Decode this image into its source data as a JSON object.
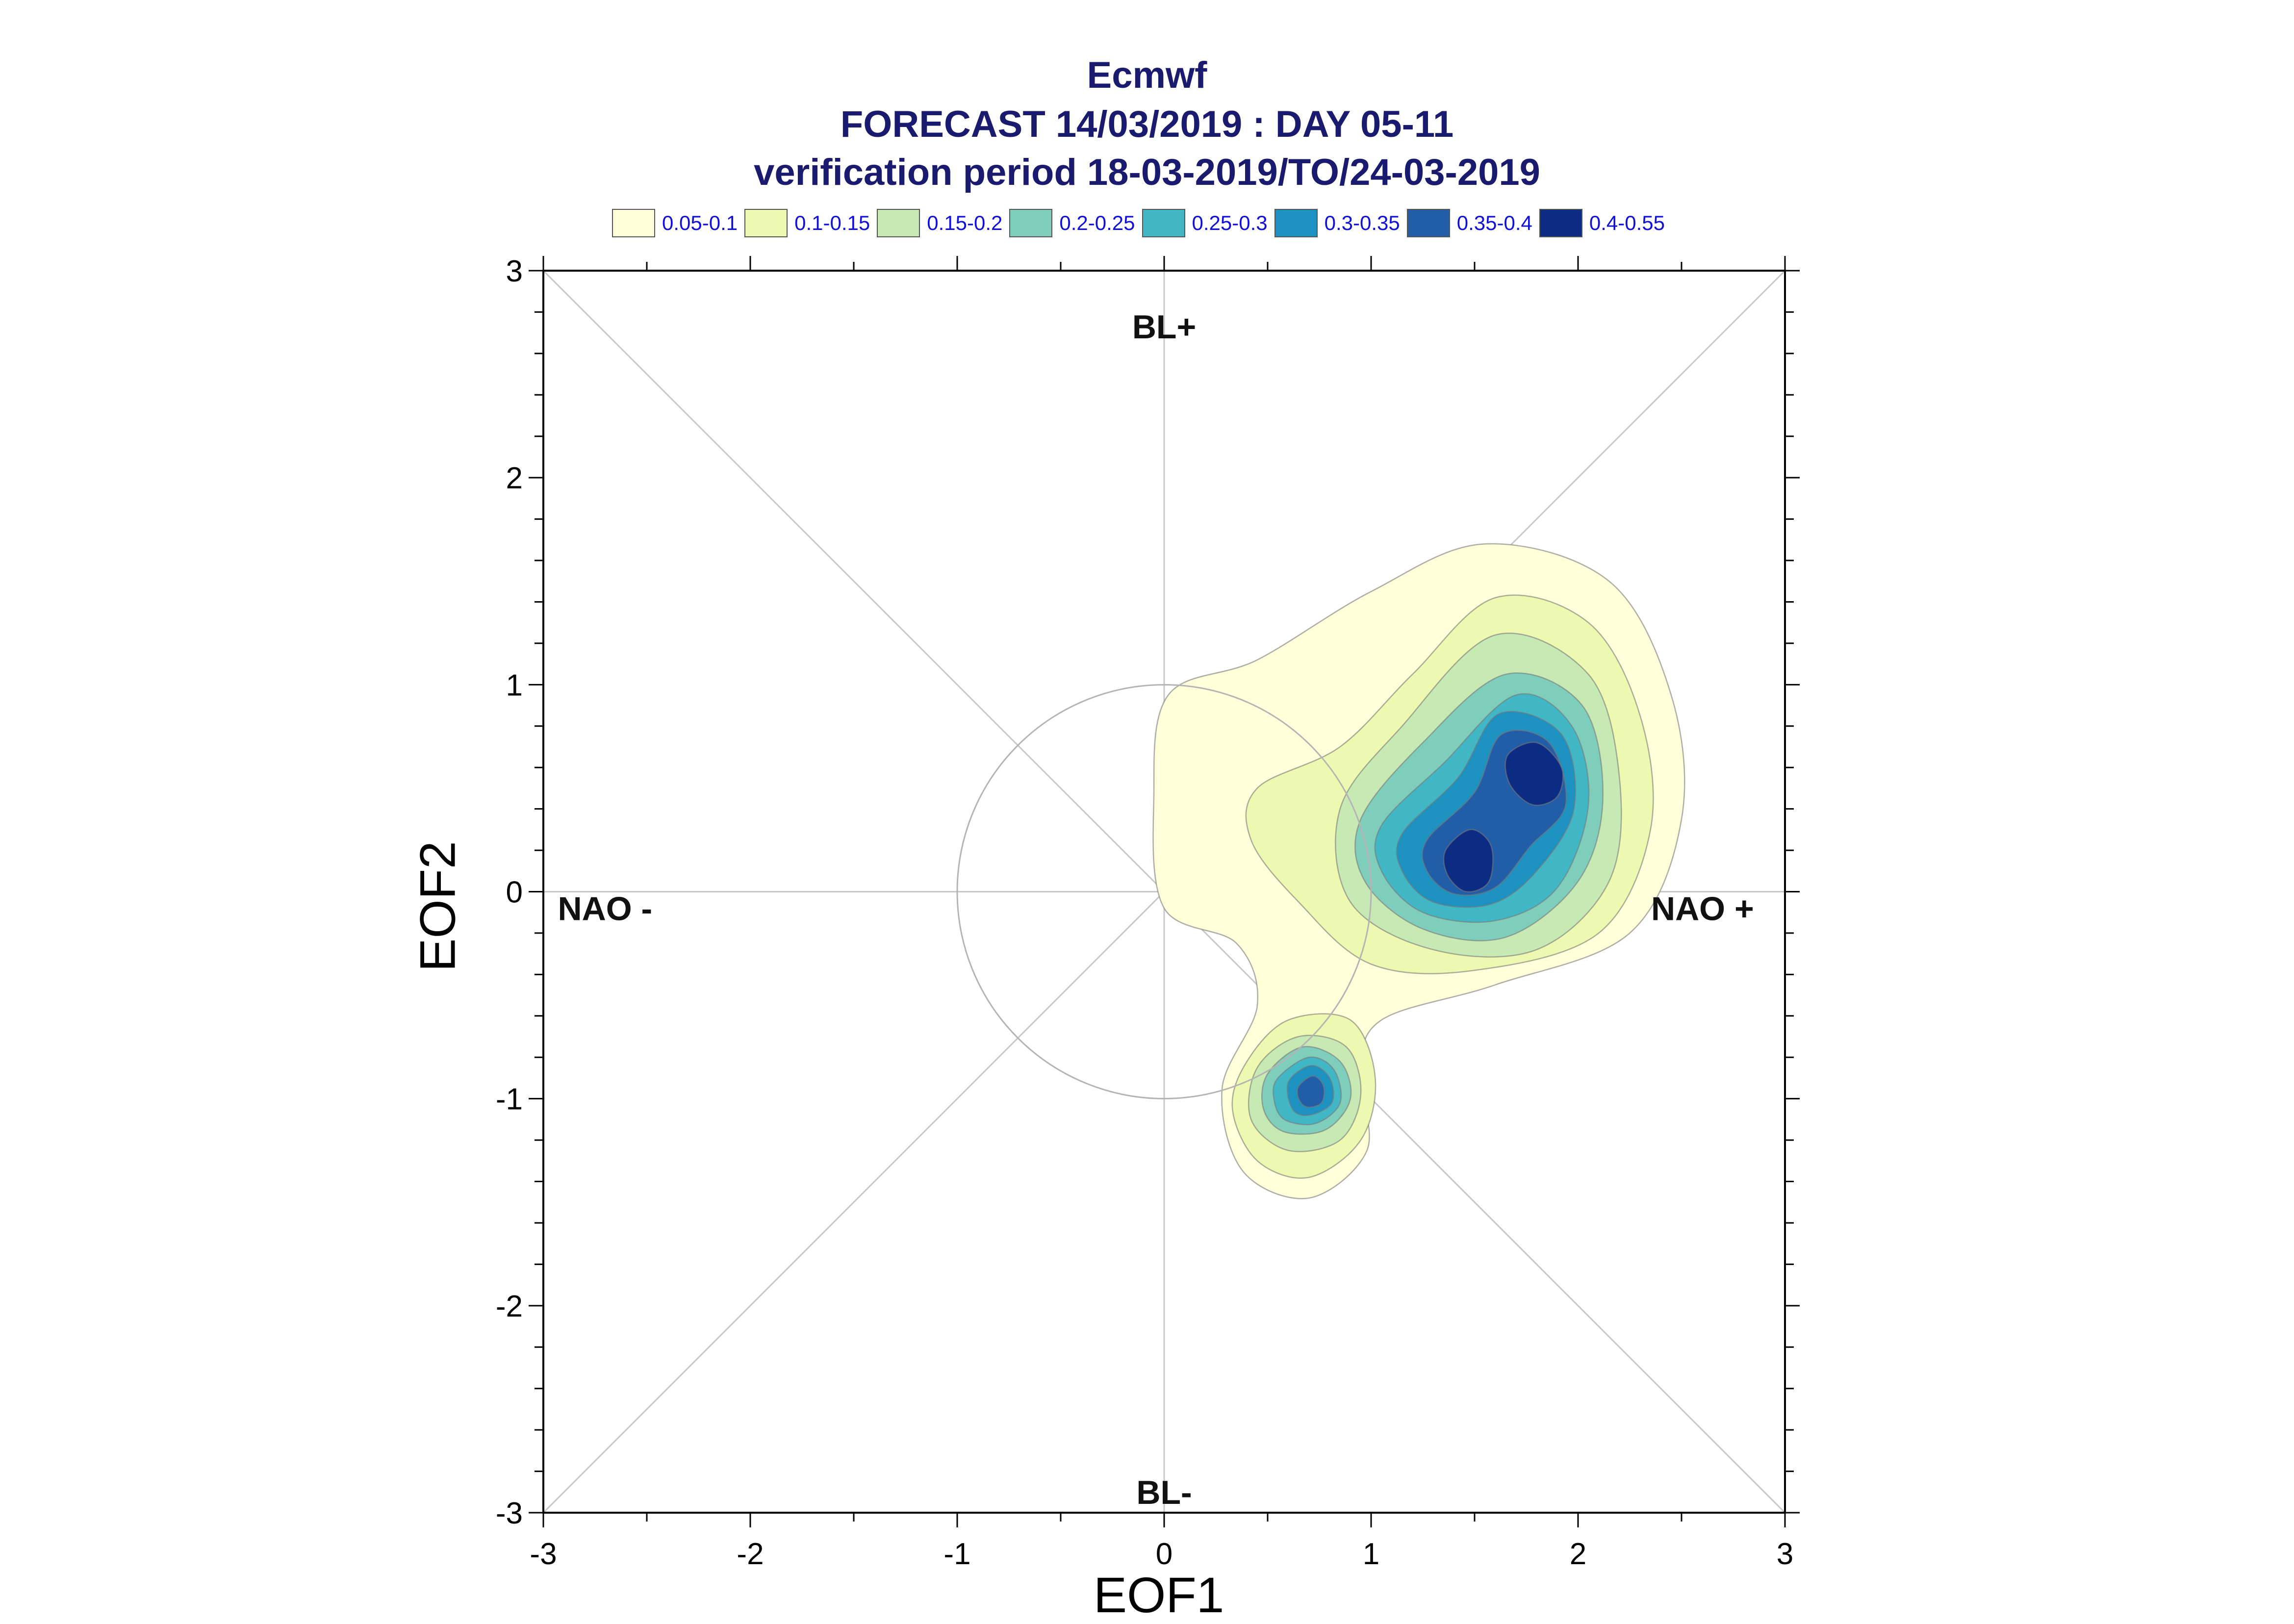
{
  "title": {
    "line1": "Ecmwf",
    "line2": "FORECAST 14/03/2019 : DAY 05-11",
    "line3": "verification period 18-03-2019/TO/24-03-2019"
  },
  "legend": [
    {
      "label": "0.05-0.1",
      "color": "#ffffd9"
    },
    {
      "label": "0.1-0.15",
      "color": "#edf8b1"
    },
    {
      "label": "0.15-0.2",
      "color": "#c7e9b4"
    },
    {
      "label": "0.2-0.25",
      "color": "#7fcdbb"
    },
    {
      "label": "0.25-0.3",
      "color": "#41b6c4"
    },
    {
      "label": "0.3-0.35",
      "color": "#1d91c0"
    },
    {
      "label": "0.35-0.4",
      "color": "#225ea8"
    },
    {
      "label": "0.4-0.55",
      "color": "#0c2c84"
    }
  ],
  "chart_data": {
    "type": "contour",
    "xlabel": "EOF1",
    "ylabel": "EOF2",
    "xlim": [
      -3,
      3
    ],
    "ylim": [
      -3,
      3
    ],
    "x_ticks": [
      "-3",
      "-2",
      "-1",
      "0",
      "1",
      "2",
      "3"
    ],
    "y_ticks": [
      "-3",
      "-2",
      "-1",
      "0",
      "1",
      "2",
      "3"
    ],
    "regime_labels": {
      "top": "BL+",
      "bottom": "BL-",
      "left": "NAO -",
      "right": "NAO +"
    },
    "reference_circle_radius": 1,
    "density_maxima": [
      {
        "x": 1.82,
        "y": 0.58,
        "level": "0.4-0.55"
      },
      {
        "x": 1.48,
        "y": 0.15,
        "level": "0.4-0.55"
      },
      {
        "x": 0.7,
        "y": -0.98,
        "level": "0.35-0.4"
      }
    ]
  }
}
